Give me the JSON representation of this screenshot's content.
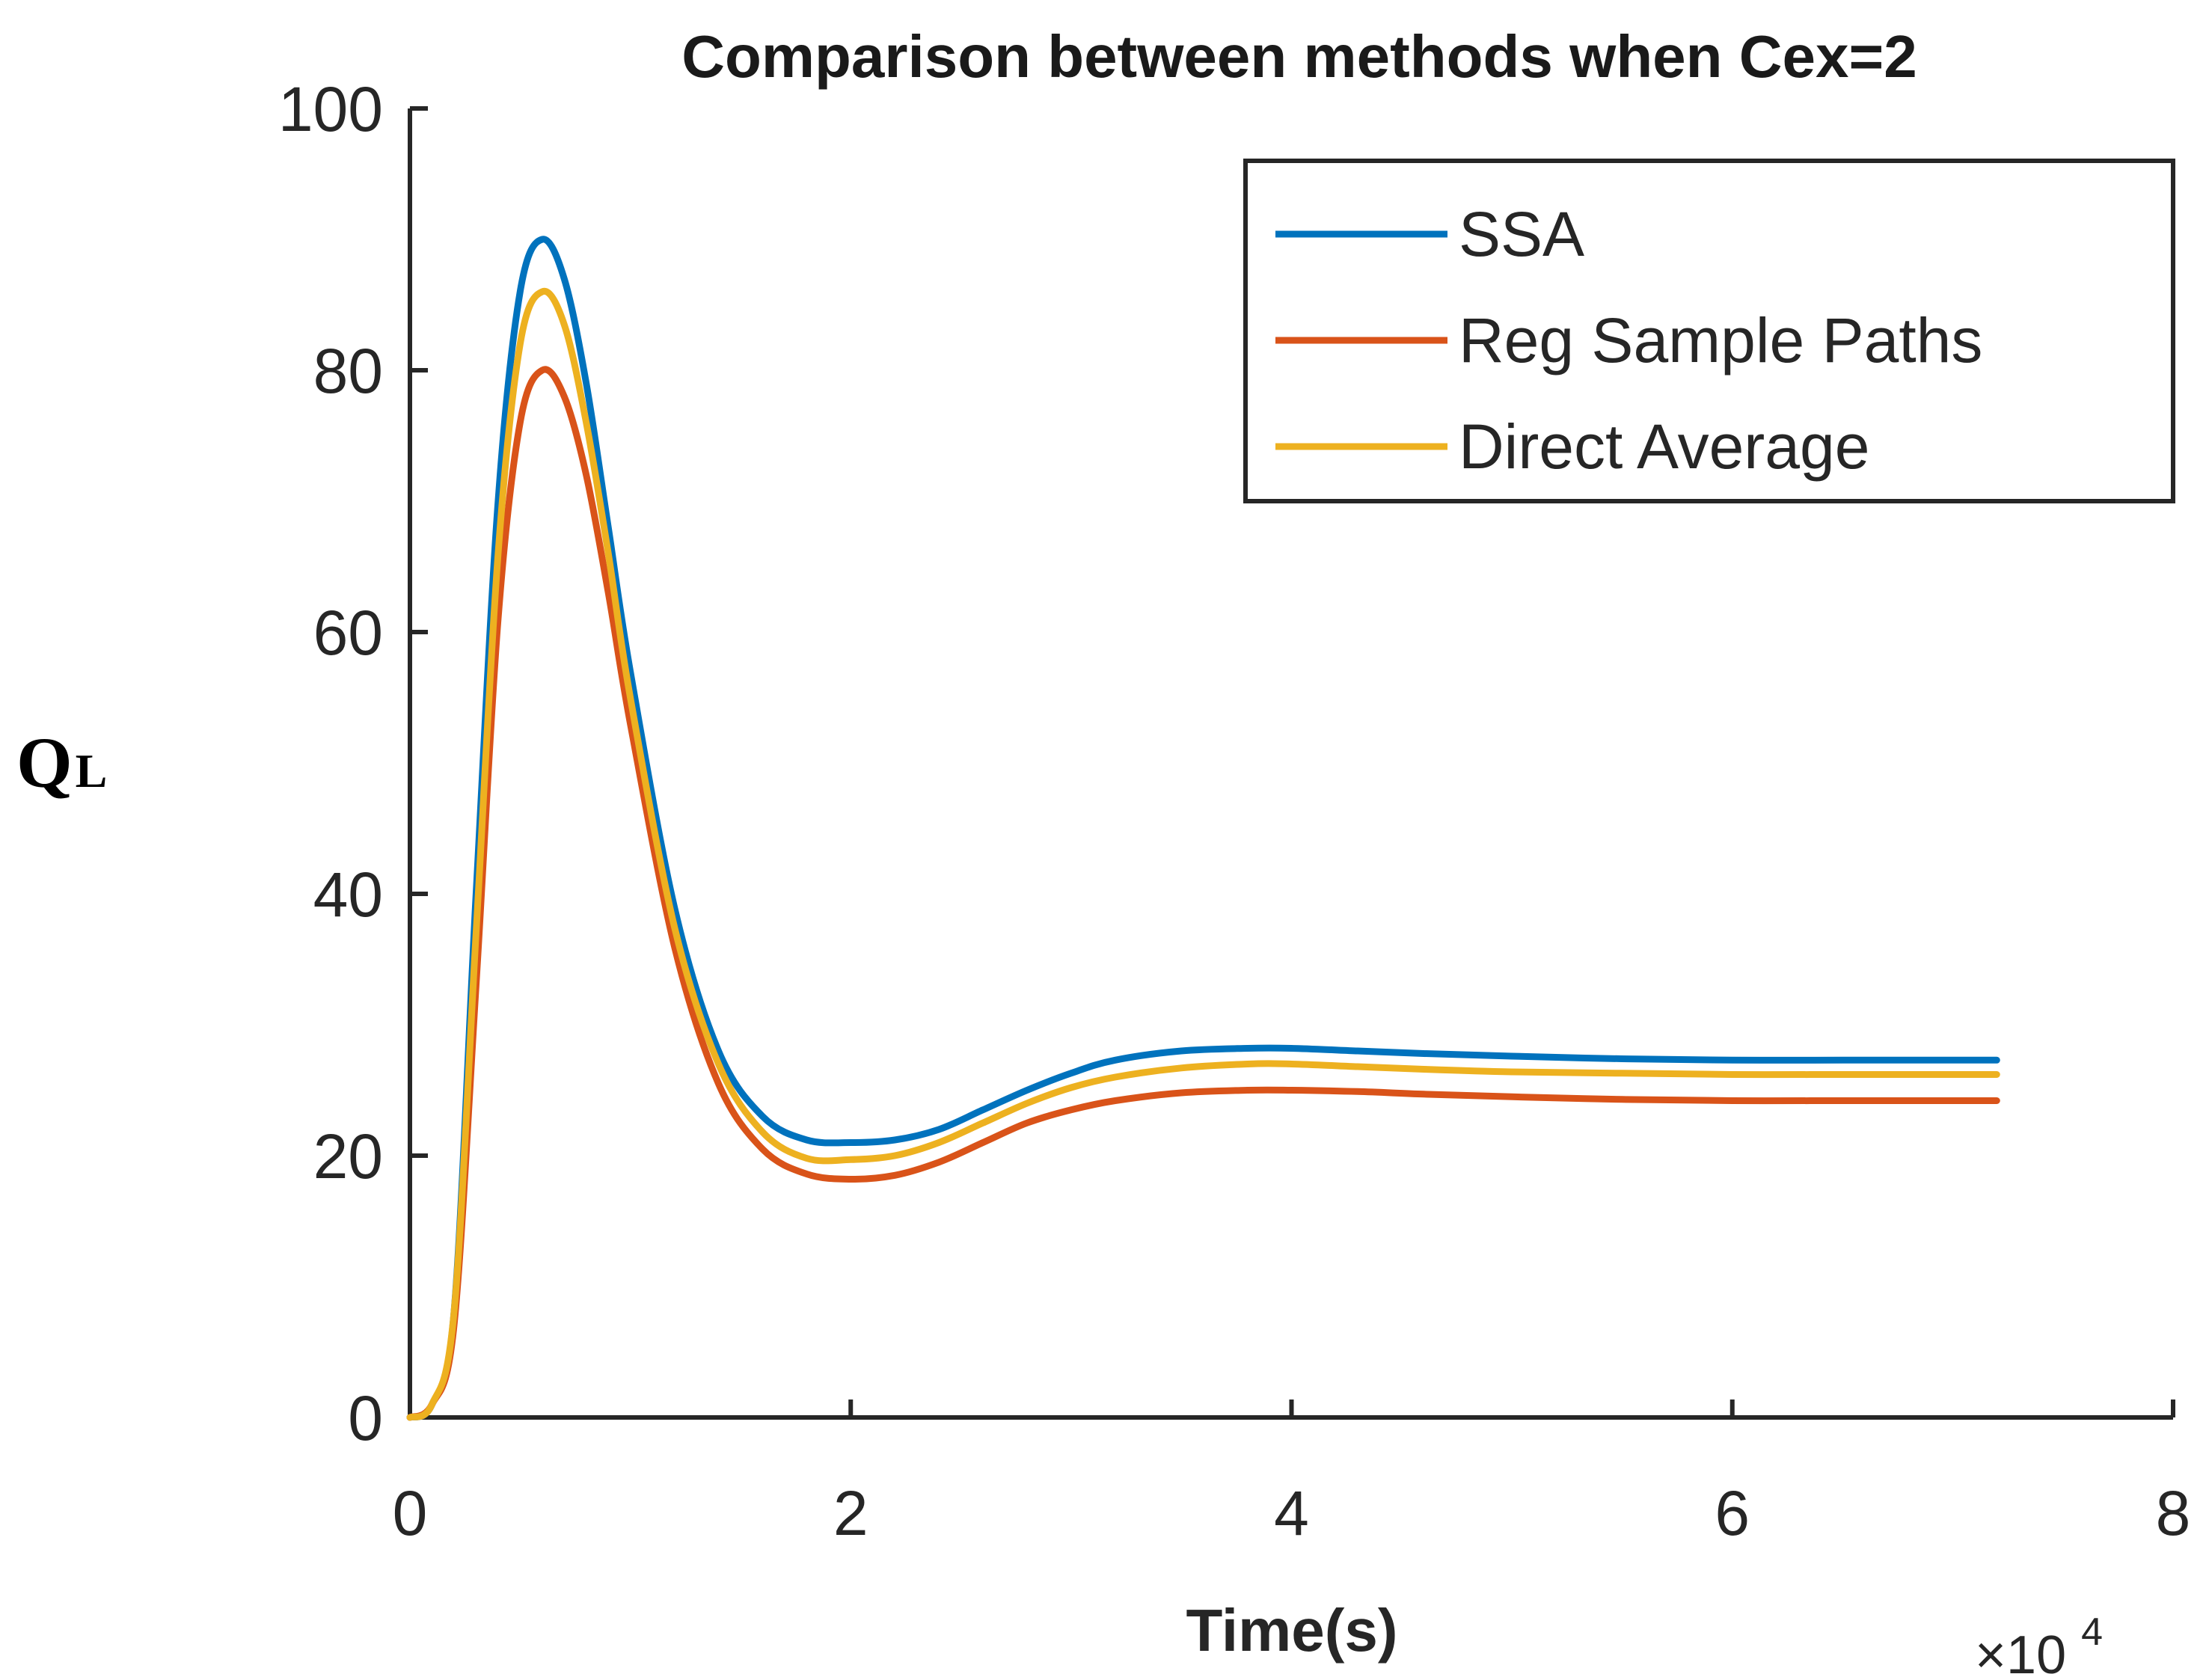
{
  "chart_data": {
    "type": "line",
    "title": "Comparison between methods when Cex=2",
    "xlabel": "Time(s)",
    "x_multiplier": "×10",
    "x_multiplier_exp": "4",
    "ylabel_main": "Q",
    "ylabel_sub": "L",
    "xlim": [
      0,
      8
    ],
    "ylim": [
      0,
      100
    ],
    "xticks": [
      0,
      2,
      4,
      6,
      8
    ],
    "yticks": [
      0,
      20,
      40,
      60,
      80,
      100
    ],
    "grid": false,
    "legend_position": "top-right",
    "x": [
      0,
      0.1,
      0.2,
      0.3,
      0.4,
      0.5,
      0.6,
      0.7,
      0.8,
      0.9,
      1.0,
      1.2,
      1.4,
      1.6,
      1.8,
      2.0,
      2.2,
      2.4,
      2.6,
      2.8,
      3.0,
      3.2,
      3.5,
      3.8,
      4.0,
      4.3,
      4.6,
      5.0,
      5.5,
      6.0,
      6.5,
      7.0,
      7.2
    ],
    "series": [
      {
        "name": "SSA",
        "color": "#0072BD",
        "values": [
          0,
          1,
          8,
          40,
          70,
          86,
          90,
          87,
          79,
          68,
          57,
          39,
          28,
          23,
          21.2,
          21,
          21.2,
          22,
          23.5,
          25,
          26.3,
          27.3,
          28,
          28.2,
          28.2,
          28,
          27.8,
          27.6,
          27.4,
          27.3,
          27.3,
          27.3,
          27.3
        ]
      },
      {
        "name": "Reg Sample Paths",
        "color": "#D95319",
        "values": [
          0,
          1,
          7,
          33,
          61,
          76,
          80,
          78,
          72,
          63,
          53,
          36,
          25.5,
          20.5,
          18.6,
          18.2,
          18.5,
          19.5,
          21,
          22.5,
          23.5,
          24.2,
          24.8,
          25,
          25,
          24.9,
          24.7,
          24.5,
          24.3,
          24.2,
          24.2,
          24.2,
          24.2
        ]
      },
      {
        "name": "Direct Average",
        "color": "#EDB120",
        "values": [
          0,
          1,
          8,
          37,
          66,
          82,
          86,
          83.5,
          76,
          66,
          55,
          37.5,
          27,
          21.8,
          19.8,
          19.7,
          20,
          21,
          22.5,
          24,
          25.2,
          26,
          26.7,
          27,
          27,
          26.8,
          26.6,
          26.4,
          26.3,
          26.2,
          26.2,
          26.2,
          26.2
        ]
      }
    ]
  }
}
